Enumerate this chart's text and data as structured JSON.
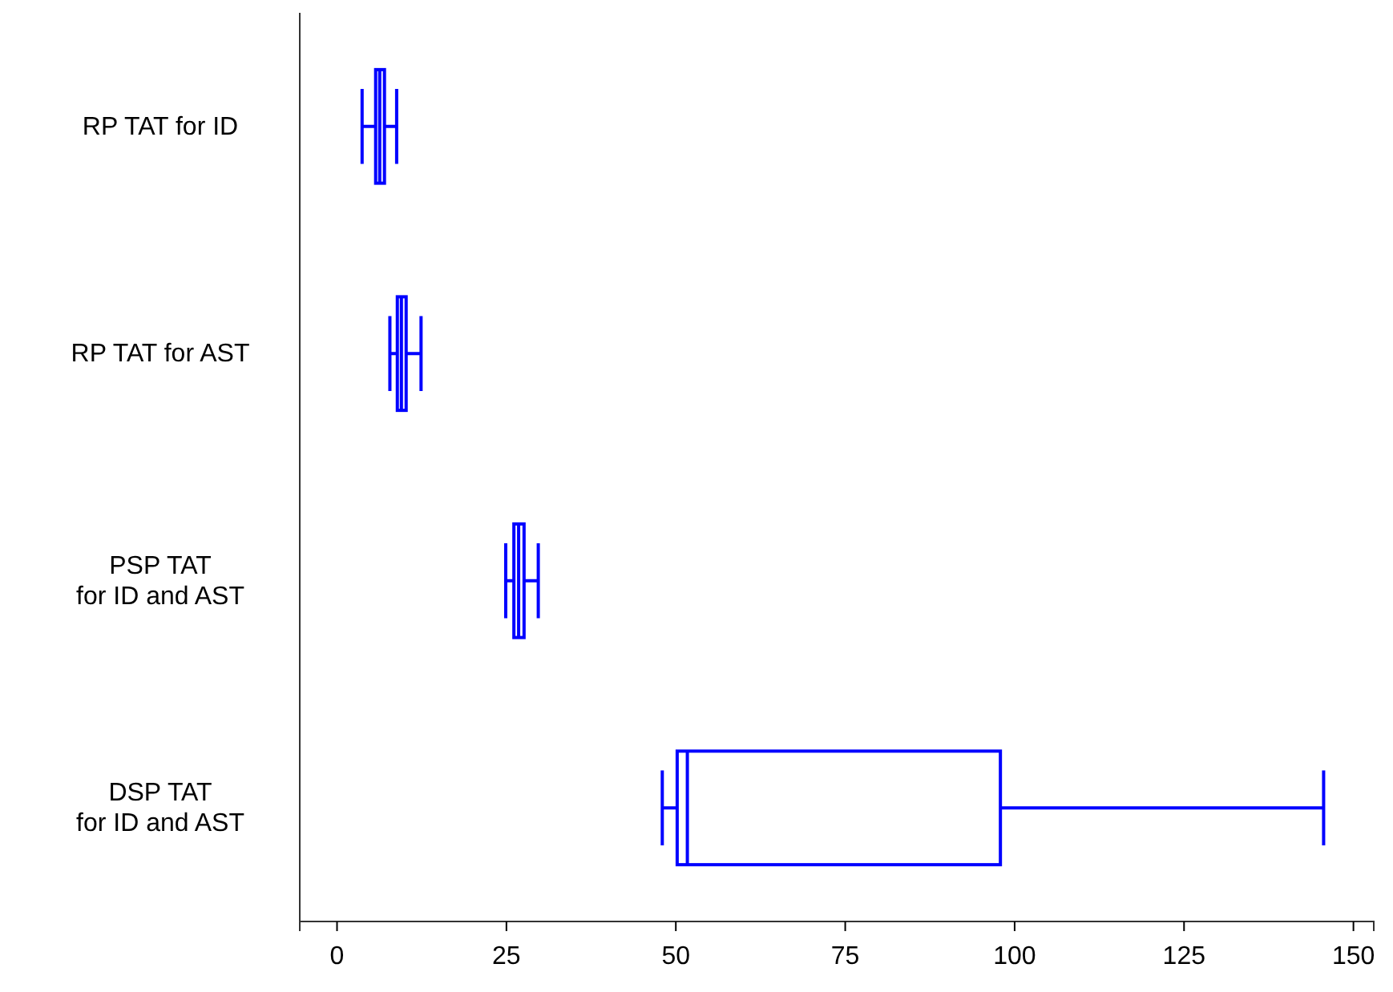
{
  "chart_data": {
    "type": "box",
    "orientation": "horizontal",
    "categories": [
      "RP TAT for ID",
      "RP TAT for AST",
      "PSP TAT\nfor ID and AST",
      "DSP TAT\nfor ID and AST"
    ],
    "series": [
      {
        "color": "#0000ff",
        "boxes": [
          {
            "low": 3.7,
            "q1": 5.7,
            "median": 6.3,
            "q3": 7.0,
            "high": 8.8
          },
          {
            "low": 7.8,
            "q1": 8.9,
            "median": 9.5,
            "q3": 10.2,
            "high": 12.4
          },
          {
            "low": 24.9,
            "q1": 26.1,
            "median": 26.8,
            "q3": 27.6,
            "high": 29.7
          },
          {
            "low": 48.0,
            "q1": 50.2,
            "median": 51.7,
            "q3": 97.9,
            "high": 145.6
          }
        ]
      }
    ],
    "xlim": [
      -5.5,
      153
    ],
    "xticks": [
      0,
      25,
      50,
      75,
      100,
      125,
      150
    ],
    "grid": false
  }
}
